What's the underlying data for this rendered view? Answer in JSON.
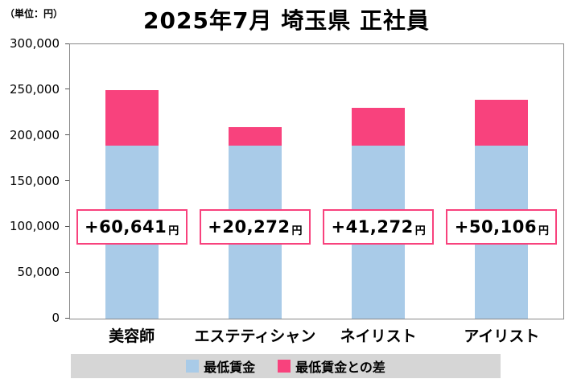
{
  "unit_label": "（単位：円）",
  "title": "2025年7月 埼玉県 正社員",
  "chart_data": {
    "type": "bar",
    "stacked": true,
    "title": "2025年7月 埼玉県 正社員",
    "unit": "円",
    "categories": [
      "美容師",
      "エステティシャン",
      "ネイリスト",
      "アイリスト"
    ],
    "series": [
      {
        "name": "最低賃金",
        "color": "#a9cbe8",
        "values": [
          189359,
          189359,
          189359,
          189359
        ]
      },
      {
        "name": "最低賃金との差",
        "color": "#f8427d",
        "values": [
          60641,
          20272,
          41272,
          50106
        ]
      }
    ],
    "totals": [
      250000,
      209631,
      230631,
      239465
    ],
    "bar_labels": [
      {
        "amount": "+60,641",
        "suffix": "円"
      },
      {
        "amount": "+20,272",
        "suffix": "円"
      },
      {
        "amount": "+41,272",
        "suffix": "円"
      },
      {
        "amount": "+50,106",
        "suffix": "円"
      }
    ],
    "ylim": [
      0,
      300000
    ],
    "yticks": [
      "300,000",
      "250,000",
      "200,000",
      "150,000",
      "100,000",
      "50,000",
      "0"
    ],
    "ytick_values": [
      300000,
      250000,
      200000,
      150000,
      100000,
      50000,
      0
    ],
    "grid": false,
    "legend_position": "bottom"
  }
}
